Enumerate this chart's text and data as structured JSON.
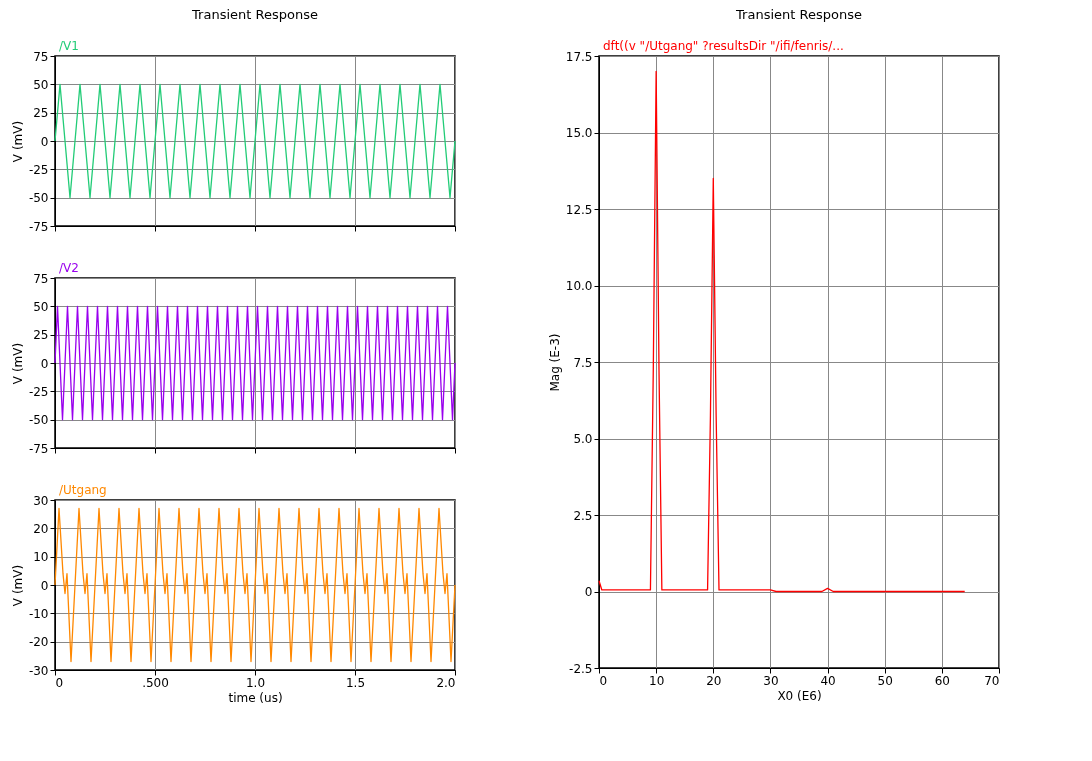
{
  "chart_data": [
    {
      "type": "line",
      "title": "Transient Response",
      "ylabel": "V (mV)",
      "legend": "top left",
      "grid": true,
      "tick_labels": "y",
      "xlim": [
        0,
        2
      ],
      "xticks": [
        0,
        0.5,
        1,
        1.5,
        2
      ],
      "ylim": [
        -75,
        75
      ],
      "yticks": [
        -75,
        -50,
        -25,
        0,
        25,
        50,
        75
      ],
      "x": [
        0,
        0.025,
        0.05,
        0.075,
        0.1,
        0.125,
        0.15,
        0.175,
        0.2,
        0.225,
        0.25,
        0.275,
        0.3,
        0.325,
        0.35,
        0.375,
        0.4,
        0.425,
        0.45,
        0.475,
        0.5,
        0.525,
        0.55,
        0.575,
        0.6,
        0.625,
        0.65,
        0.675,
        0.7,
        0.725,
        0.75,
        0.775,
        0.8,
        0.825,
        0.85,
        0.875,
        0.9,
        0.925,
        0.95,
        0.975,
        1.0,
        1.025,
        1.05,
        1.075,
        1.1,
        1.125,
        1.15,
        1.175,
        1.2,
        1.225,
        1.25,
        1.275,
        1.3,
        1.325,
        1.35,
        1.375,
        1.4,
        1.425,
        1.45,
        1.475,
        1.5,
        1.525,
        1.55,
        1.575,
        1.6,
        1.625,
        1.65,
        1.675,
        1.7,
        1.725,
        1.75,
        1.775,
        1.8,
        1.825,
        1.85,
        1.875,
        1.9,
        1.925,
        1.95,
        1.975,
        2.0
      ],
      "series": [
        {
          "name": "/V1",
          "color": "#22cc77",
          "values": [
            0,
            50,
            0,
            -50,
            0,
            50,
            0,
            -50,
            0,
            50,
            0,
            -50,
            0,
            50,
            0,
            -50,
            0,
            50,
            0,
            -50,
            0,
            50,
            0,
            -50,
            0,
            50,
            0,
            -50,
            0,
            50,
            0,
            -50,
            0,
            50,
            0,
            -50,
            0,
            50,
            0,
            -50,
            0,
            50,
            0,
            -50,
            0,
            50,
            0,
            -50,
            0,
            50,
            0,
            -50,
            0,
            50,
            0,
            -50,
            0,
            50,
            0,
            -50,
            0,
            50,
            0,
            -50,
            0,
            50,
            0,
            -50,
            0,
            50,
            0,
            -50,
            0,
            50,
            0,
            -50,
            0,
            50,
            0,
            -50,
            0
          ]
        }
      ]
    },
    {
      "type": "line",
      "ylabel": "V (mV)",
      "legend": "top left",
      "grid": true,
      "tick_labels": "y",
      "xlim": [
        0,
        2
      ],
      "xticks": [
        0,
        0.5,
        1,
        1.5,
        2
      ],
      "ylim": [
        -75,
        75
      ],
      "yticks": [
        -75,
        -50,
        -25,
        0,
        25,
        50,
        75
      ],
      "series": [
        {
          "name": "/V2",
          "color": "#9900ee",
          "x": [
            0,
            0.0125,
            0.0375,
            0.0625,
            0.0875,
            0.1125,
            0.1375,
            0.1625,
            0.1875,
            0.2125,
            0.2375,
            0.2625,
            0.2875,
            0.3125,
            0.3375,
            0.3625,
            0.3875,
            0.4125,
            0.4375,
            0.4625,
            0.4875,
            0.5125,
            0.5375,
            0.5625,
            0.5875,
            0.6125,
            0.6375,
            0.6625,
            0.6875,
            0.7125,
            0.7375,
            0.7625,
            0.7875,
            0.8125,
            0.8375,
            0.8625,
            0.8875,
            0.9125,
            0.9375,
            0.9625,
            0.9875,
            1.0125,
            1.0375,
            1.0625,
            1.0875,
            1.1125,
            1.1375,
            1.1625,
            1.1875,
            1.2125,
            1.2375,
            1.2625,
            1.2875,
            1.3125,
            1.3375,
            1.3625,
            1.3875,
            1.4125,
            1.4375,
            1.4625,
            1.4875,
            1.5125,
            1.5375,
            1.5625,
            1.5875,
            1.6125,
            1.6375,
            1.6625,
            1.6875,
            1.7125,
            1.7375,
            1.7625,
            1.7875,
            1.8125,
            1.8375,
            1.8625,
            1.8875,
            1.9125,
            1.9375,
            1.9625,
            1.9875,
            2.0
          ],
          "values": [
            0,
            50,
            -50,
            50,
            -50,
            50,
            -50,
            50,
            -50,
            50,
            -50,
            50,
            -50,
            50,
            -50,
            50,
            -50,
            50,
            -50,
            50,
            -50,
            50,
            -50,
            50,
            -50,
            50,
            -50,
            50,
            -50,
            50,
            -50,
            50,
            -50,
            50,
            -50,
            50,
            -50,
            50,
            -50,
            50,
            -50,
            50,
            -50,
            50,
            -50,
            50,
            -50,
            50,
            -50,
            50,
            -50,
            50,
            -50,
            50,
            -50,
            50,
            -50,
            50,
            -50,
            50,
            -50,
            50,
            -50,
            50,
            -50,
            50,
            -50,
            50,
            -50,
            50,
            -50,
            50,
            -50,
            50,
            -50,
            50,
            -50,
            50,
            -50,
            50,
            -50,
            0
          ]
        }
      ]
    },
    {
      "type": "line",
      "xlabel": "time (us)",
      "ylabel": "V (mV)",
      "legend": "top left",
      "grid": true,
      "xlim": [
        0,
        2
      ],
      "xticks": [
        0,
        {
          "value": 0.5,
          "label": ".500"
        },
        {
          "value": 1,
          "label": "1.0"
        },
        1.5,
        {
          "value": 2,
          "label": "2.0"
        }
      ],
      "ylim": [
        -30,
        30
      ],
      "yticks": [
        -30,
        -20,
        -10,
        0,
        10,
        20,
        30
      ],
      "x": [
        0,
        0.02,
        0.04,
        0.05,
        0.06,
        0.08,
        0.1,
        0.12,
        0.14,
        0.15,
        0.16,
        0.18,
        0.2,
        0.22,
        0.24,
        0.25,
        0.26,
        0.28,
        0.3,
        0.32,
        0.34,
        0.35,
        0.36,
        0.38,
        0.4,
        0.42,
        0.44,
        0.45,
        0.46,
        0.48,
        0.5,
        0.52,
        0.54,
        0.55,
        0.56,
        0.58,
        0.6,
        0.62,
        0.64,
        0.65,
        0.66,
        0.68,
        0.7,
        0.72,
        0.74,
        0.75,
        0.76,
        0.78,
        0.8,
        0.82,
        0.84,
        0.85,
        0.86,
        0.88,
        0.9,
        0.92,
        0.94,
        0.95,
        0.96,
        0.98,
        1.0,
        1.02,
        1.04,
        1.05,
        1.06,
        1.08,
        1.1,
        1.12,
        1.14,
        1.15,
        1.16,
        1.18,
        1.2,
        1.22,
        1.24,
        1.25,
        1.26,
        1.28,
        1.3,
        1.32,
        1.34,
        1.35,
        1.36,
        1.38,
        1.4,
        1.42,
        1.44,
        1.45,
        1.46,
        1.48,
        1.5,
        1.52,
        1.54,
        1.55,
        1.56,
        1.58,
        1.6,
        1.62,
        1.64,
        1.65,
        1.66,
        1.68,
        1.7,
        1.72,
        1.74,
        1.75,
        1.76,
        1.78,
        1.8,
        1.82,
        1.84,
        1.85,
        1.86,
        1.88,
        1.9,
        1.92,
        1.94,
        1.95,
        1.96,
        1.98,
        2.0
      ],
      "series": [
        {
          "name": "/Utgang",
          "color": "#ff8800",
          "values": [
            0,
            27,
            4,
            -3,
            4,
            -27,
            0,
            27,
            4,
            -3,
            4,
            -27,
            0,
            27,
            4,
            -3,
            4,
            -27,
            0,
            27,
            4,
            -3,
            4,
            -27,
            0,
            27,
            4,
            -3,
            4,
            -27,
            0,
            27,
            4,
            -3,
            4,
            -27,
            0,
            27,
            4,
            -3,
            4,
            -27,
            0,
            27,
            4,
            -3,
            4,
            -27,
            0,
            27,
            4,
            -3,
            4,
            -27,
            0,
            27,
            4,
            -3,
            4,
            -27,
            0,
            27,
            4,
            -3,
            4,
            -27,
            0,
            27,
            4,
            -3,
            4,
            -27,
            0,
            27,
            4,
            -3,
            4,
            -27,
            0,
            27,
            4,
            -3,
            4,
            -27,
            0,
            27,
            4,
            -3,
            4,
            -27,
            0,
            27,
            4,
            -3,
            4,
            -27,
            0,
            27,
            4,
            -3,
            4,
            -27,
            0,
            27,
            4,
            -3,
            4,
            -27,
            0,
            27,
            4,
            -3,
            4,
            -27,
            0,
            27,
            4,
            -3,
            4,
            -27,
            0
          ]
        }
      ]
    },
    {
      "type": "line",
      "title": "Transient Response",
      "xlabel": "X0 (E6)",
      "ylabel": "Mag (E-3)",
      "legend": "top left",
      "grid": true,
      "xlim": [
        0,
        70
      ],
      "xticks": [
        0,
        10,
        20,
        30,
        40,
        50,
        60,
        70
      ],
      "ylim": [
        -2.5,
        17.5
      ],
      "yticks": [
        -2.5,
        0,
        2.5,
        {
          "value": 5,
          "label": "5.0"
        },
        7.5,
        {
          "value": 10,
          "label": "10.0"
        },
        12.5,
        {
          "value": 15,
          "label": "15.0"
        },
        17.5
      ],
      "x": [
        0,
        0.5,
        9,
        9.5,
        10,
        10.5,
        11,
        19,
        19.5,
        20,
        20.5,
        21,
        30,
        31,
        39,
        40,
        41,
        64
      ],
      "series": [
        {
          "name": "dft((v \"/Utgang\" ?resultsDir \"/ifi/fenris/...",
          "color": "#ff0000",
          "values": [
            0.35,
            0.05,
            0.05,
            7.25,
            17,
            7.25,
            0.05,
            0.05,
            5.75,
            13.5,
            5.75,
            0.05,
            0.05,
            0,
            0,
            0.1,
            0,
            0
          ]
        }
      ]
    }
  ]
}
